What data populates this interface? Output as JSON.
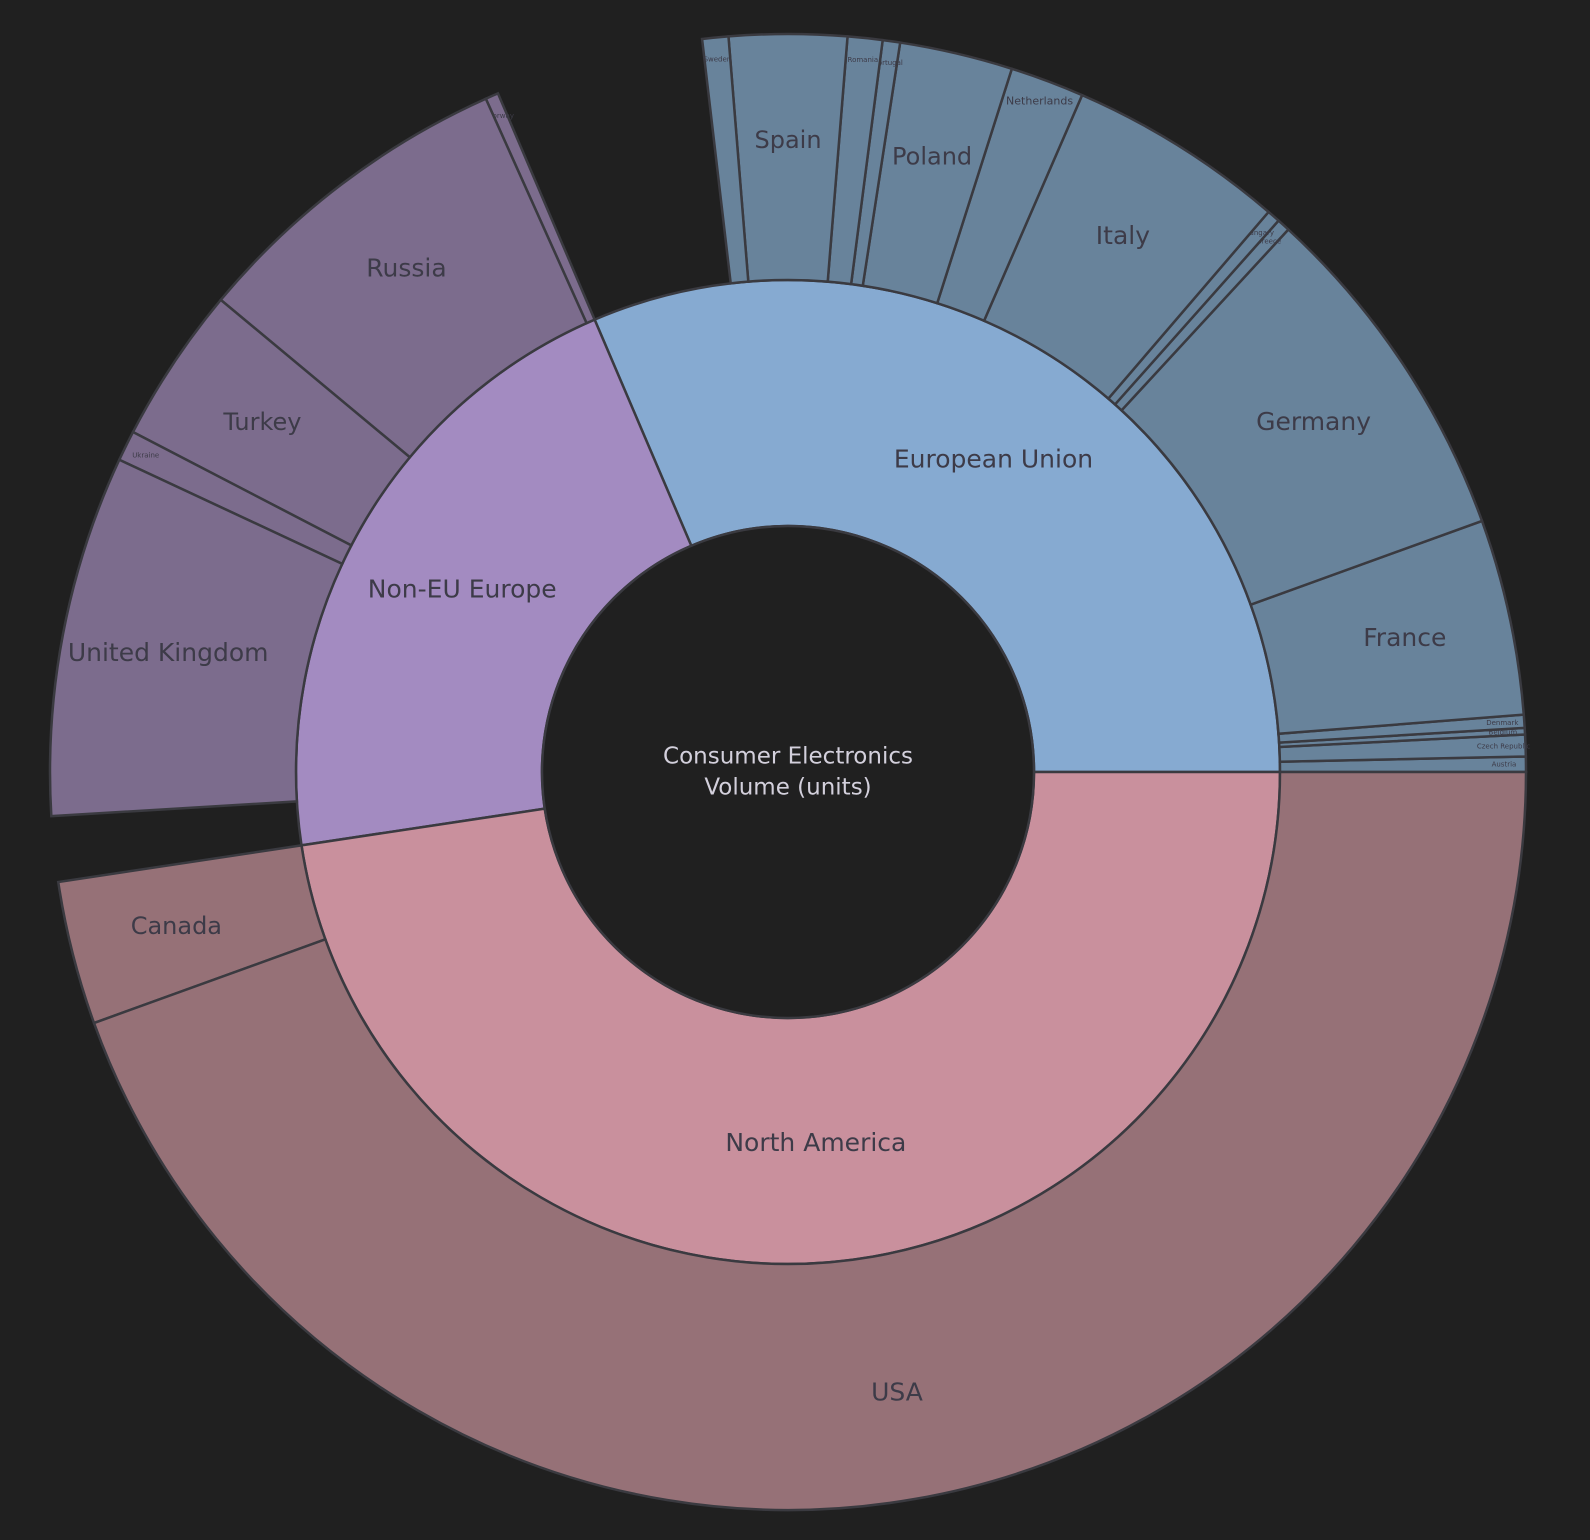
{
  "chart_data": {
    "type": "sunburst",
    "title": "Consumer Electronics\nVolume (units)",
    "title_lines": [
      "Consumer Electronics",
      "Volume (units)"
    ],
    "background": "#202020",
    "colors": {
      "European Union": {
        "inner": "#86aad1",
        "outer": "#68839b"
      },
      "North America": {
        "inner": "#c9909d",
        "outer": "#967177"
      },
      "Non-EU Europe": {
        "inner": "#a38bc1",
        "outer": "#7c6c8d"
      }
    },
    "groups": [
      {
        "name": "European Union",
        "total": 330,
        "children": [
          {
            "name": "Austria",
            "value": 3.5
          },
          {
            "name": "Czech Republic",
            "value": 5.0
          },
          {
            "name": "Belgium",
            "value": 1.5
          },
          {
            "name": "Denmark",
            "value": 3.0
          },
          {
            "name": "France",
            "value": 45
          },
          {
            "name": "Germany",
            "value": 80
          },
          {
            "name": "Greece",
            "value": 3.0
          },
          {
            "name": "Hungary",
            "value": 3.0
          },
          {
            "name": "Italy",
            "value": 50
          },
          {
            "name": "Netherlands",
            "value": 17
          },
          {
            "name": "Poland",
            "value": 26
          },
          {
            "name": "Portugal",
            "value": 4.0
          },
          {
            "name": "Romania",
            "value": 8.0
          },
          {
            "name": "Spain",
            "value": 27
          },
          {
            "name": "Sweden",
            "value": 6.0
          }
        ]
      },
      {
        "name": "Non-EU Europe",
        "total": 220,
        "children": [
          {
            "name": "Norway",
            "value": 3.0
          },
          {
            "name": "Russia",
            "value": 76
          },
          {
            "name": "Turkey",
            "value": 36
          },
          {
            "name": "Ukraine",
            "value": 7.0
          },
          {
            "name": "United Kingdom",
            "value": 83
          }
        ]
      },
      {
        "name": "North America",
        "total": 500,
        "children": [
          {
            "name": "Canada",
            "value": 33
          },
          {
            "name": "USA",
            "value": 467
          }
        ]
      }
    ]
  }
}
